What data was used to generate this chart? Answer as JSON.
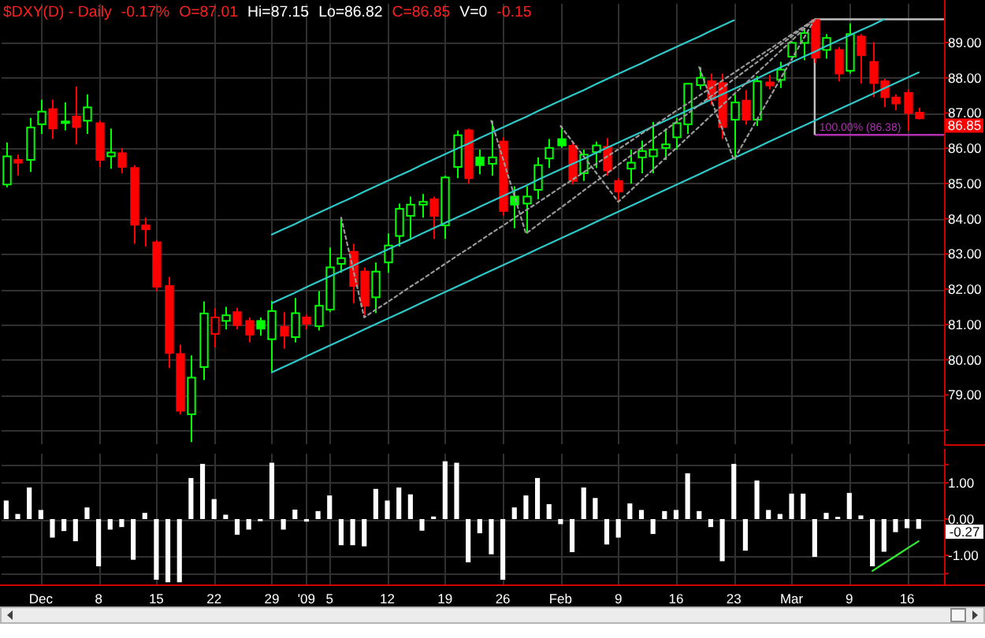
{
  "chart_data": [
    {
      "type": "candlestick",
      "title": "$DXY(D) - Daily",
      "annotations": [
        "-0.17%",
        "O=87.01",
        "Hi=87.15",
        "Lo=86.82",
        "C=86.85",
        "V=0",
        "-0.15",
        "86.85"
      ],
      "categories": [
        null,
        null,
        null,
        null,
        null,
        null,
        null,
        null,
        null,
        null,
        null,
        null,
        null,
        null,
        null,
        null,
        null,
        null,
        null,
        null,
        null,
        null,
        null,
        null,
        null,
        null,
        null,
        null,
        null,
        null,
        null,
        null,
        null,
        null,
        null,
        null,
        null,
        null,
        null,
        null,
        null,
        null,
        null,
        null,
        null,
        null,
        null,
        null,
        null,
        null,
        null,
        null,
        null,
        null,
        null,
        null,
        null,
        null,
        null,
        null,
        null,
        null,
        null,
        null,
        null,
        null,
        null,
        null,
        null,
        null,
        null,
        null,
        null,
        null,
        null,
        null,
        null,
        null,
        null,
        null
      ],
      "ohlc": [
        [
          84.97,
          86.16,
          84.89,
          85.77
        ],
        [
          85.67,
          85.82,
          85.22,
          85.59
        ],
        [
          85.67,
          86.86,
          85.33,
          86.59
        ],
        [
          86.68,
          87.38,
          86.41,
          87.04
        ],
        [
          87.11,
          87.38,
          86.26,
          86.56
        ],
        [
          86.73,
          87.3,
          86.51,
          86.76
        ],
        [
          86.9,
          87.75,
          86.11,
          86.6
        ],
        [
          86.78,
          87.53,
          86.41,
          87.16
        ],
        [
          86.71,
          86.78,
          85.47,
          85.67
        ],
        [
          85.77,
          86.56,
          85.42,
          85.88
        ],
        [
          85.86,
          86.0,
          85.29,
          85.47
        ],
        [
          85.44,
          85.52,
          83.29,
          83.83
        ],
        [
          83.81,
          84.03,
          83.21,
          83.7
        ],
        [
          83.33,
          83.39,
          81.95,
          82.07
        ],
        [
          82.09,
          82.35,
          79.76,
          80.19
        ],
        [
          80.16,
          80.43,
          78.45,
          78.55
        ],
        [
          78.45,
          80.12,
          77.66,
          79.49
        ],
        [
          79.79,
          81.65,
          79.42,
          81.31
        ],
        [
          80.73,
          81.46,
          80.35,
          81.2
        ],
        [
          81.1,
          81.5,
          80.86,
          81.26
        ],
        [
          81.35,
          81.47,
          80.86,
          80.98
        ],
        [
          81.1,
          81.2,
          80.49,
          80.71
        ],
        [
          81.1,
          81.2,
          80.68,
          80.88
        ],
        [
          80.58,
          81.67,
          79.64,
          81.38
        ],
        [
          80.93,
          81.35,
          80.31,
          80.68
        ],
        [
          80.64,
          81.75,
          80.49,
          81.32
        ],
        [
          81.2,
          81.28,
          80.86,
          81.02
        ],
        [
          80.95,
          81.95,
          80.83,
          81.53
        ],
        [
          81.42,
          83.18,
          81.35,
          82.62
        ],
        [
          82.72,
          84.03,
          82.47,
          82.88
        ],
        [
          83.06,
          83.29,
          81.6,
          82.09
        ],
        [
          82.5,
          82.62,
          81.2,
          81.53
        ],
        [
          81.77,
          82.76,
          81.32,
          82.5
        ],
        [
          82.76,
          83.58,
          82.47,
          83.24
        ],
        [
          83.51,
          84.43,
          83.21,
          84.28
        ],
        [
          84.08,
          84.63,
          83.43,
          84.4
        ],
        [
          84.4,
          84.7,
          84.03,
          84.48
        ],
        [
          84.55,
          84.63,
          83.43,
          84.08
        ],
        [
          83.81,
          85.22,
          83.43,
          85.17
        ],
        [
          85.47,
          86.51,
          85.15,
          86.37
        ],
        [
          86.51,
          86.56,
          85.0,
          85.15
        ],
        [
          85.74,
          85.96,
          85.26,
          85.52
        ],
        [
          85.56,
          86.78,
          85.22,
          85.74
        ],
        [
          86.19,
          86.31,
          84.09,
          84.22
        ],
        [
          84.63,
          84.92,
          83.73,
          84.4
        ],
        [
          84.43,
          84.92,
          83.58,
          84.63
        ],
        [
          84.82,
          85.74,
          84.55,
          85.52
        ],
        [
          85.71,
          86.26,
          85.44,
          86.01
        ],
        [
          86.26,
          86.63,
          86.01,
          86.08
        ],
        [
          86.07,
          86.16,
          84.97,
          85.07
        ],
        [
          85.29,
          85.96,
          85.07,
          85.82
        ],
        [
          85.89,
          86.19,
          85.44,
          86.08
        ],
        [
          86.04,
          86.29,
          85.22,
          85.37
        ],
        [
          85.07,
          85.15,
          84.48,
          84.77
        ],
        [
          85.42,
          85.96,
          85.0,
          85.59
        ],
        [
          85.74,
          86.22,
          85.29,
          85.92
        ],
        [
          85.77,
          86.75,
          85.29,
          85.96
        ],
        [
          86.01,
          86.56,
          85.67,
          86.11
        ],
        [
          86.31,
          86.86,
          85.96,
          86.71
        ],
        [
          86.68,
          87.85,
          86.41,
          87.83
        ],
        [
          87.79,
          88.3,
          87.67,
          88.0
        ],
        [
          87.9,
          88.12,
          87.23,
          87.38
        ],
        [
          87.85,
          88.12,
          86.26,
          86.6
        ],
        [
          86.81,
          87.53,
          85.67,
          87.3
        ],
        [
          87.35,
          87.65,
          86.67,
          86.81
        ],
        [
          86.81,
          88.05,
          86.63,
          87.9
        ],
        [
          87.87,
          88.08,
          87.67,
          87.78
        ],
        [
          87.94,
          88.45,
          87.71,
          88.23
        ],
        [
          88.6,
          89.04,
          88.5,
          88.99
        ],
        [
          88.99,
          89.39,
          88.5,
          89.27
        ],
        [
          89.64,
          89.66,
          88.42,
          88.57
        ],
        [
          88.79,
          89.24,
          88.54,
          89.13
        ],
        [
          88.79,
          88.87,
          87.9,
          88.12
        ],
        [
          88.2,
          89.54,
          88.12,
          89.24
        ],
        [
          89.17,
          89.24,
          87.83,
          88.64
        ],
        [
          88.45,
          89.01,
          87.45,
          87.85
        ],
        [
          87.9,
          87.97,
          87.16,
          87.45
        ],
        [
          87.44,
          87.53,
          87.08,
          87.27
        ],
        [
          87.57,
          87.67,
          86.49,
          87.0
        ],
        [
          87.01,
          87.15,
          86.82,
          86.85
        ]
      ],
      "colors": [
        "#00ff00",
        "#ff0000",
        "#00ff00",
        "#00ff00",
        "#ff0000",
        "#00ff00",
        "#ff0000",
        "#00ff00",
        "#ff0000",
        "#00ff00",
        "#ff0000",
        "#ff0000",
        "#ff0000",
        "#ff0000",
        "#ff0000",
        "#ff0000",
        "#00ff00",
        "#00ff00",
        "#ff0000",
        "#00ff00",
        "#ff0000",
        "#ff0000",
        "#00ff00",
        "#00ff00",
        "#ff0000",
        "#00ff00",
        "#ff0000",
        "#00ff00",
        "#00ff00",
        "#00ff00",
        "#ff0000",
        "#ff0000",
        "#00ff00",
        "#00ff00",
        "#00ff00",
        "#00ff00",
        "#00ff00",
        "#ff0000",
        "#00ff00",
        "#00ff00",
        "#ff0000",
        "#00ff00",
        "#00ff00",
        "#ff0000",
        "#00ff00",
        "#00ff00",
        "#00ff00",
        "#00ff00",
        "#00ff00",
        "#ff0000",
        "#00ff00",
        "#00ff00",
        "#ff0000",
        "#ff0000",
        "#00ff00",
        "#00ff00",
        "#00ff00",
        "#00ff00",
        "#00ff00",
        "#00ff00",
        "#00ff00",
        "#ff0000",
        "#ff0000",
        "#00ff00",
        "#ff0000",
        "#00ff00",
        "#ff0000",
        "#00ff00",
        "#00ff00",
        "#00ff00",
        "#ff0000",
        "#00ff00",
        "#ff0000",
        "#00ff00",
        "#ff0000",
        "#ff0000",
        "#ff0000",
        "#ff0000",
        "#ff0000",
        "#ff0000"
      ],
      "ylim": [
        77.6,
        90.1
      ],
      "yticks": [
        {
          "value": 78,
          "label": null
        },
        {
          "value": 79,
          "label": "79.00"
        },
        {
          "value": 80,
          "label": "80.00"
        },
        {
          "value": 81,
          "label": "81.00"
        },
        {
          "value": 82,
          "label": "82.00"
        },
        {
          "value": 83,
          "label": "83.00"
        },
        {
          "value": 84,
          "label": "84.00"
        },
        {
          "value": 85,
          "label": "85.00"
        },
        {
          "value": 86,
          "label": "86.00"
        },
        {
          "value": 87,
          "label": "87.00"
        },
        {
          "value": 88,
          "label": "88.00"
        },
        {
          "value": 89,
          "label": "89.00"
        }
      ],
      "tick_labels": "y",
      "grid": true,
      "series": [
        {
          "type": "line",
          "color": "#2ec8c8",
          "values": [
            null,
            null,
            null,
            null,
            null,
            null,
            null,
            null,
            null,
            null,
            null,
            null,
            null,
            null,
            null,
            null,
            null,
            null,
            null,
            null,
            null,
            null,
            null,
            83.55,
            83.7,
            83.85,
            84.01,
            84.16,
            84.31,
            84.46,
            84.61,
            84.77,
            84.92,
            85.07,
            85.22,
            85.37,
            85.53,
            85.68,
            85.83,
            85.98,
            86.13,
            86.29,
            86.44,
            86.59,
            86.74,
            86.89,
            87.05,
            87.2,
            87.35,
            87.5,
            87.65,
            87.81,
            87.96,
            88.11,
            88.26,
            88.41,
            88.57,
            88.72,
            88.87,
            89.02,
            89.17,
            89.33,
            89.48,
            89.63,
            null,
            null,
            null,
            null,
            null,
            null,
            null,
            null,
            null,
            null,
            null,
            null,
            null,
            null,
            null,
            null
          ]
        },
        {
          "type": "line",
          "color": "#2ec8c8",
          "values": [
            null,
            null,
            null,
            null,
            null,
            null,
            null,
            null,
            null,
            null,
            null,
            null,
            null,
            null,
            null,
            null,
            null,
            null,
            null,
            null,
            null,
            null,
            null,
            81.6,
            81.75,
            81.9,
            82.06,
            82.21,
            82.36,
            82.51,
            82.66,
            82.82,
            82.97,
            83.12,
            83.27,
            83.42,
            83.58,
            83.73,
            83.88,
            84.03,
            84.18,
            84.34,
            84.49,
            84.64,
            84.79,
            84.94,
            85.1,
            85.25,
            85.4,
            85.55,
            85.7,
            85.86,
            86.01,
            86.16,
            86.31,
            86.46,
            86.62,
            86.77,
            86.92,
            87.07,
            87.22,
            87.38,
            87.53,
            87.68,
            87.83,
            87.98,
            88.14,
            88.29,
            88.44,
            88.59,
            88.74,
            88.9,
            89.05,
            89.2,
            89.35,
            89.5,
            89.66,
            null,
            null,
            null
          ]
        },
        {
          "type": "line",
          "color": "#2ec8c8",
          "values": [
            null,
            null,
            null,
            null,
            null,
            null,
            null,
            null,
            null,
            null,
            null,
            null,
            null,
            null,
            null,
            null,
            null,
            null,
            null,
            null,
            null,
            null,
            null,
            79.64,
            79.79,
            79.94,
            80.1,
            80.25,
            80.4,
            80.55,
            80.7,
            80.86,
            81.01,
            81.16,
            81.31,
            81.46,
            81.62,
            81.77,
            81.92,
            82.07,
            82.22,
            82.38,
            82.53,
            82.68,
            82.83,
            82.98,
            83.14,
            83.29,
            83.44,
            83.59,
            83.74,
            83.9,
            84.05,
            84.2,
            84.35,
            84.5,
            84.66,
            84.81,
            84.96,
            85.11,
            85.26,
            85.42,
            85.57,
            85.72,
            85.87,
            86.02,
            86.18,
            86.33,
            86.48,
            86.63,
            86.78,
            86.94,
            87.09,
            87.24,
            87.39,
            87.54,
            87.7,
            87.85,
            88.0,
            88.15
          ]
        },
        {
          "type": "line",
          "color": "#9a9a9a",
          "line_style": "dotted",
          "values": [
            null,
            null,
            null,
            null,
            null,
            null,
            null,
            null,
            null,
            null,
            null,
            null,
            null,
            null,
            null,
            null,
            null,
            null,
            null,
            null,
            null,
            null,
            null,
            null,
            null,
            null,
            null,
            null,
            null,
            84.03,
            82.62,
            81.2,
            81.42,
            81.63,
            81.85,
            82.07,
            82.28,
            82.5,
            82.72,
            82.94,
            83.15,
            83.37,
            83.59,
            83.8,
            84.02,
            84.24,
            84.45,
            84.67,
            84.89,
            85.1,
            85.32,
            85.54,
            85.76,
            85.97,
            86.19,
            86.41,
            86.62,
            86.84,
            87.06,
            87.27,
            87.49,
            87.71,
            87.92,
            88.14,
            88.36,
            88.58,
            88.79,
            89.01,
            89.23,
            89.44,
            89.66,
            null,
            null,
            null,
            null,
            null,
            null,
            null,
            null,
            null
          ]
        },
        {
          "type": "line",
          "color": "#9a9a9a",
          "line_style": "dotted",
          "values": [
            null,
            null,
            null,
            null,
            null,
            null,
            null,
            null,
            null,
            null,
            null,
            null,
            null,
            null,
            null,
            null,
            null,
            null,
            null,
            null,
            null,
            null,
            null,
            null,
            null,
            null,
            null,
            null,
            null,
            null,
            null,
            null,
            null,
            null,
            null,
            null,
            null,
            null,
            null,
            null,
            null,
            null,
            86.78,
            85.71,
            84.65,
            83.58,
            83.82,
            84.07,
            84.31,
            84.55,
            84.8,
            85.04,
            85.28,
            85.53,
            85.77,
            86.01,
            86.26,
            86.5,
            86.74,
            86.98,
            87.23,
            87.47,
            87.71,
            87.96,
            88.2,
            88.44,
            88.69,
            88.93,
            89.17,
            89.42,
            89.66,
            null,
            null,
            null,
            null,
            null,
            null,
            null,
            null,
            null
          ]
        },
        {
          "type": "line",
          "color": "#9a9a9a",
          "line_style": "dotted",
          "values": [
            null,
            null,
            null,
            null,
            null,
            null,
            null,
            null,
            null,
            null,
            null,
            null,
            null,
            null,
            null,
            null,
            null,
            null,
            null,
            null,
            null,
            null,
            null,
            null,
            null,
            null,
            null,
            null,
            null,
            null,
            null,
            null,
            null,
            null,
            null,
            null,
            null,
            null,
            null,
            null,
            null,
            null,
            null,
            null,
            null,
            null,
            null,
            null,
            86.63,
            86.2,
            85.77,
            85.34,
            84.91,
            84.48,
            84.78,
            85.09,
            85.39,
            85.7,
            86.0,
            86.31,
            86.61,
            86.92,
            87.22,
            87.53,
            87.83,
            88.14,
            88.44,
            88.75,
            89.05,
            89.36,
            89.66,
            null,
            null,
            null,
            null,
            null,
            null,
            null,
            null,
            null
          ]
        },
        {
          "type": "line",
          "color": "#9a9a9a",
          "line_style": "dotted",
          "values": [
            null,
            null,
            null,
            null,
            null,
            null,
            null,
            null,
            null,
            null,
            null,
            null,
            null,
            null,
            null,
            null,
            null,
            null,
            null,
            null,
            null,
            null,
            null,
            null,
            null,
            null,
            null,
            null,
            null,
            null,
            null,
            null,
            null,
            null,
            null,
            null,
            null,
            null,
            null,
            null,
            null,
            null,
            null,
            null,
            null,
            null,
            null,
            null,
            null,
            null,
            null,
            null,
            null,
            null,
            null,
            null,
            null,
            null,
            null,
            null,
            88.3,
            87.42,
            86.55,
            85.67,
            86.24,
            86.81,
            87.38,
            87.95,
            88.52,
            89.09,
            89.66,
            null,
            null,
            null,
            null,
            null,
            null,
            null,
            null,
            null
          ]
        }
      ],
      "ref_lines": [
        {
          "axis": "y",
          "value": 89.66,
          "color": "#c0c0c0"
        },
        {
          "axis": "y",
          "value": 86.38,
          "label": "100.00% (86.38)",
          "color": "#b030b0"
        }
      ]
    },
    {
      "type": "bar",
      "annotations": [
        "-0.27"
      ],
      "categories": [
        null,
        null,
        null,
        "Dec",
        null,
        null,
        null,
        null,
        "8",
        null,
        null,
        null,
        null,
        "15",
        null,
        null,
        null,
        null,
        "22",
        null,
        null,
        null,
        null,
        "29",
        null,
        null,
        "'09",
        null,
        "5",
        null,
        null,
        null,
        null,
        "12",
        null,
        null,
        null,
        null,
        "19",
        null,
        null,
        null,
        null,
        "26",
        null,
        null,
        null,
        null,
        "Feb",
        null,
        null,
        null,
        null,
        "9",
        null,
        null,
        null,
        null,
        "16",
        null,
        null,
        null,
        null,
        "23",
        null,
        null,
        null,
        null,
        "Mar",
        null,
        null,
        null,
        null,
        "9",
        null,
        null,
        null,
        null,
        "16",
        null
      ],
      "series": [
        {
          "type": "bar",
          "color": "#ffffff",
          "values": [
            0.51,
            0.14,
            0.87,
            0.25,
            -0.51,
            -0.33,
            -0.61,
            0.32,
            -1.3,
            -0.29,
            -0.22,
            -1.12,
            0.17,
            -1.67,
            -1.74,
            -1.74,
            1.13,
            1.52,
            0.55,
            0.12,
            -0.43,
            -0.29,
            -0.06,
            1.55,
            -0.29,
            0.26,
            -0.07,
            0.22,
            0.65,
            -0.72,
            -0.72,
            -0.75,
            0.83,
            0.51,
            0.87,
            0.68,
            -0.32,
            0.07,
            1.59,
            1.55,
            -1.19,
            -0.39,
            -0.97,
            -1.67,
            0.32,
            0.65,
            1.13,
            0.41,
            -0.14,
            -0.91,
            0.87,
            0.58,
            -0.7,
            -0.51,
            0.43,
            0.25,
            -0.41,
            0.22,
            0.25,
            1.26,
            0.22,
            -0.22,
            -1.16,
            1.52,
            -0.87,
            1.06,
            0.25,
            0.14,
            0.7,
            0.7,
            -1.04,
            0.17,
            0.06,
            0.72,
            0.1,
            -1.3,
            -0.9,
            -0.36,
            -0.25,
            -0.27
          ]
        },
        {
          "type": "line",
          "color": "#33ee33",
          "values": [
            null,
            null,
            null,
            null,
            null,
            null,
            null,
            null,
            null,
            null,
            null,
            null,
            null,
            null,
            null,
            null,
            null,
            null,
            null,
            null,
            null,
            null,
            null,
            null,
            null,
            null,
            null,
            null,
            null,
            null,
            null,
            null,
            null,
            null,
            null,
            null,
            null,
            null,
            null,
            null,
            null,
            null,
            null,
            null,
            null,
            null,
            null,
            null,
            null,
            null,
            null,
            null,
            null,
            null,
            null,
            null,
            null,
            null,
            null,
            null,
            null,
            null,
            null,
            null,
            null,
            null,
            null,
            null,
            null,
            null,
            null,
            null,
            null,
            null,
            null,
            -1.43,
            -1.22,
            -1.02,
            -0.81,
            -0.61
          ]
        }
      ],
      "ylim": [
        -1.8,
        1.8
      ],
      "yticks": [
        {
          "value": -1.5,
          "label": null
        },
        {
          "value": -1,
          "label": "-1.00"
        },
        {
          "value": 0,
          "label": "0.00"
        },
        {
          "value": 1,
          "label": "1.00"
        },
        {
          "value": 1.5,
          "label": null
        }
      ],
      "grid": true
    }
  ]
}
